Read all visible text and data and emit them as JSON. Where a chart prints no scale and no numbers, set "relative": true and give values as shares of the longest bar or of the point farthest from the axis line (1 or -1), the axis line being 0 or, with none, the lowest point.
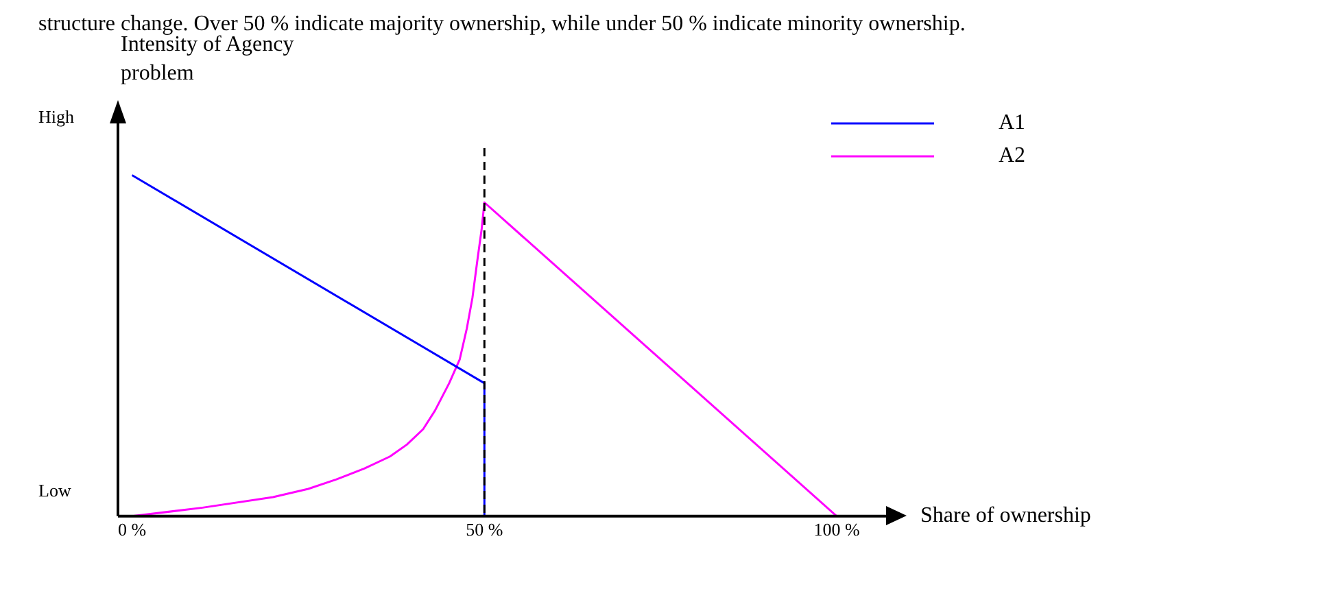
{
  "chart_data": {
    "type": "line",
    "relative": true,
    "ylabel": "Intensity of Agency problem",
    "xlabel": "Share of ownership",
    "annotations": [
      "structure change. Over 50 % indicate majority ownership, while under 50 % indicate minority ownership.",
      "High",
      "Low"
    ],
    "xlim": [
      -2,
      107
    ],
    "xticks": [
      {
        "value": 0,
        "label": "0 %"
      },
      {
        "value": 50,
        "label": "50 %"
      },
      {
        "value": 100,
        "label": "100 %"
      }
    ],
    "series": [
      {
        "name": "A1",
        "color": "#0000ff",
        "x": [
          0,
          50,
          50
        ],
        "values": [
          1,
          0.39,
          0
        ]
      },
      {
        "name": "A2",
        "color": "#ff00ff",
        "x": [
          0,
          10,
          20,
          25,
          29,
          33,
          36.6,
          39,
          41.3,
          43,
          45,
          46.5,
          47.5,
          48.3,
          49,
          49.6,
          50,
          100
        ],
        "values": [
          0,
          0.025,
          0.056,
          0.08,
          0.108,
          0.14,
          0.175,
          0.21,
          0.255,
          0.31,
          0.39,
          0.46,
          0.55,
          0.64,
          0.75,
          0.84,
          0.92,
          0
        ]
      }
    ],
    "ref_lines": [
      {
        "axis": "x",
        "value": 50,
        "color": "#000000",
        "line_style": "dashed"
      }
    ],
    "legend": "top right",
    "grid": false,
    "marker": "none",
    "line_style": "solid"
  }
}
